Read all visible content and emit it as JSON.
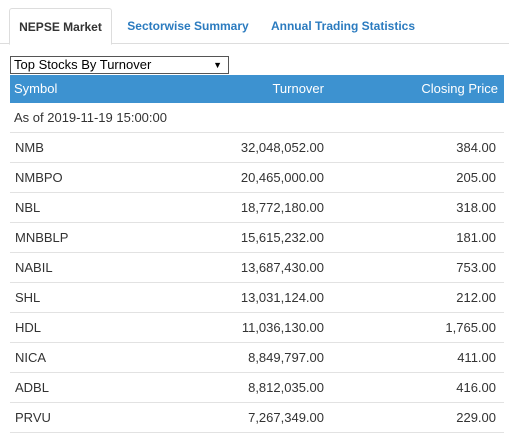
{
  "tabs": [
    {
      "label": "NEPSE Market"
    },
    {
      "label": "Sectorwise Summary"
    },
    {
      "label": "Annual Trading Statistics"
    }
  ],
  "filter": {
    "selected": "Top Stocks By Turnover"
  },
  "table": {
    "headers": {
      "symbol": "Symbol",
      "turnover": "Turnover",
      "closing": "Closing Price"
    },
    "as_of": "As of 2019-11-19 15:00:00",
    "rows": [
      {
        "symbol": "NMB",
        "turnover": "32,048,052.00",
        "closing": "384.00"
      },
      {
        "symbol": "NMBPO",
        "turnover": "20,465,000.00",
        "closing": "205.00"
      },
      {
        "symbol": "NBL",
        "turnover": "18,772,180.00",
        "closing": "318.00"
      },
      {
        "symbol": "MNBBLP",
        "turnover": "15,615,232.00",
        "closing": "181.00"
      },
      {
        "symbol": "NABIL",
        "turnover": "13,687,430.00",
        "closing": "753.00"
      },
      {
        "symbol": "SHL",
        "turnover": "13,031,124.00",
        "closing": "212.00"
      },
      {
        "symbol": "HDL",
        "turnover": "11,036,130.00",
        "closing": "1,765.00"
      },
      {
        "symbol": "NICA",
        "turnover": "8,849,797.00",
        "closing": "411.00"
      },
      {
        "symbol": "ADBL",
        "turnover": "8,812,035.00",
        "closing": "416.00"
      },
      {
        "symbol": "PRVU",
        "turnover": "7,267,349.00",
        "closing": "229.00"
      }
    ]
  },
  "colors": {
    "header_bg": "#3d92d0",
    "tab_link": "#2b7bbf"
  }
}
